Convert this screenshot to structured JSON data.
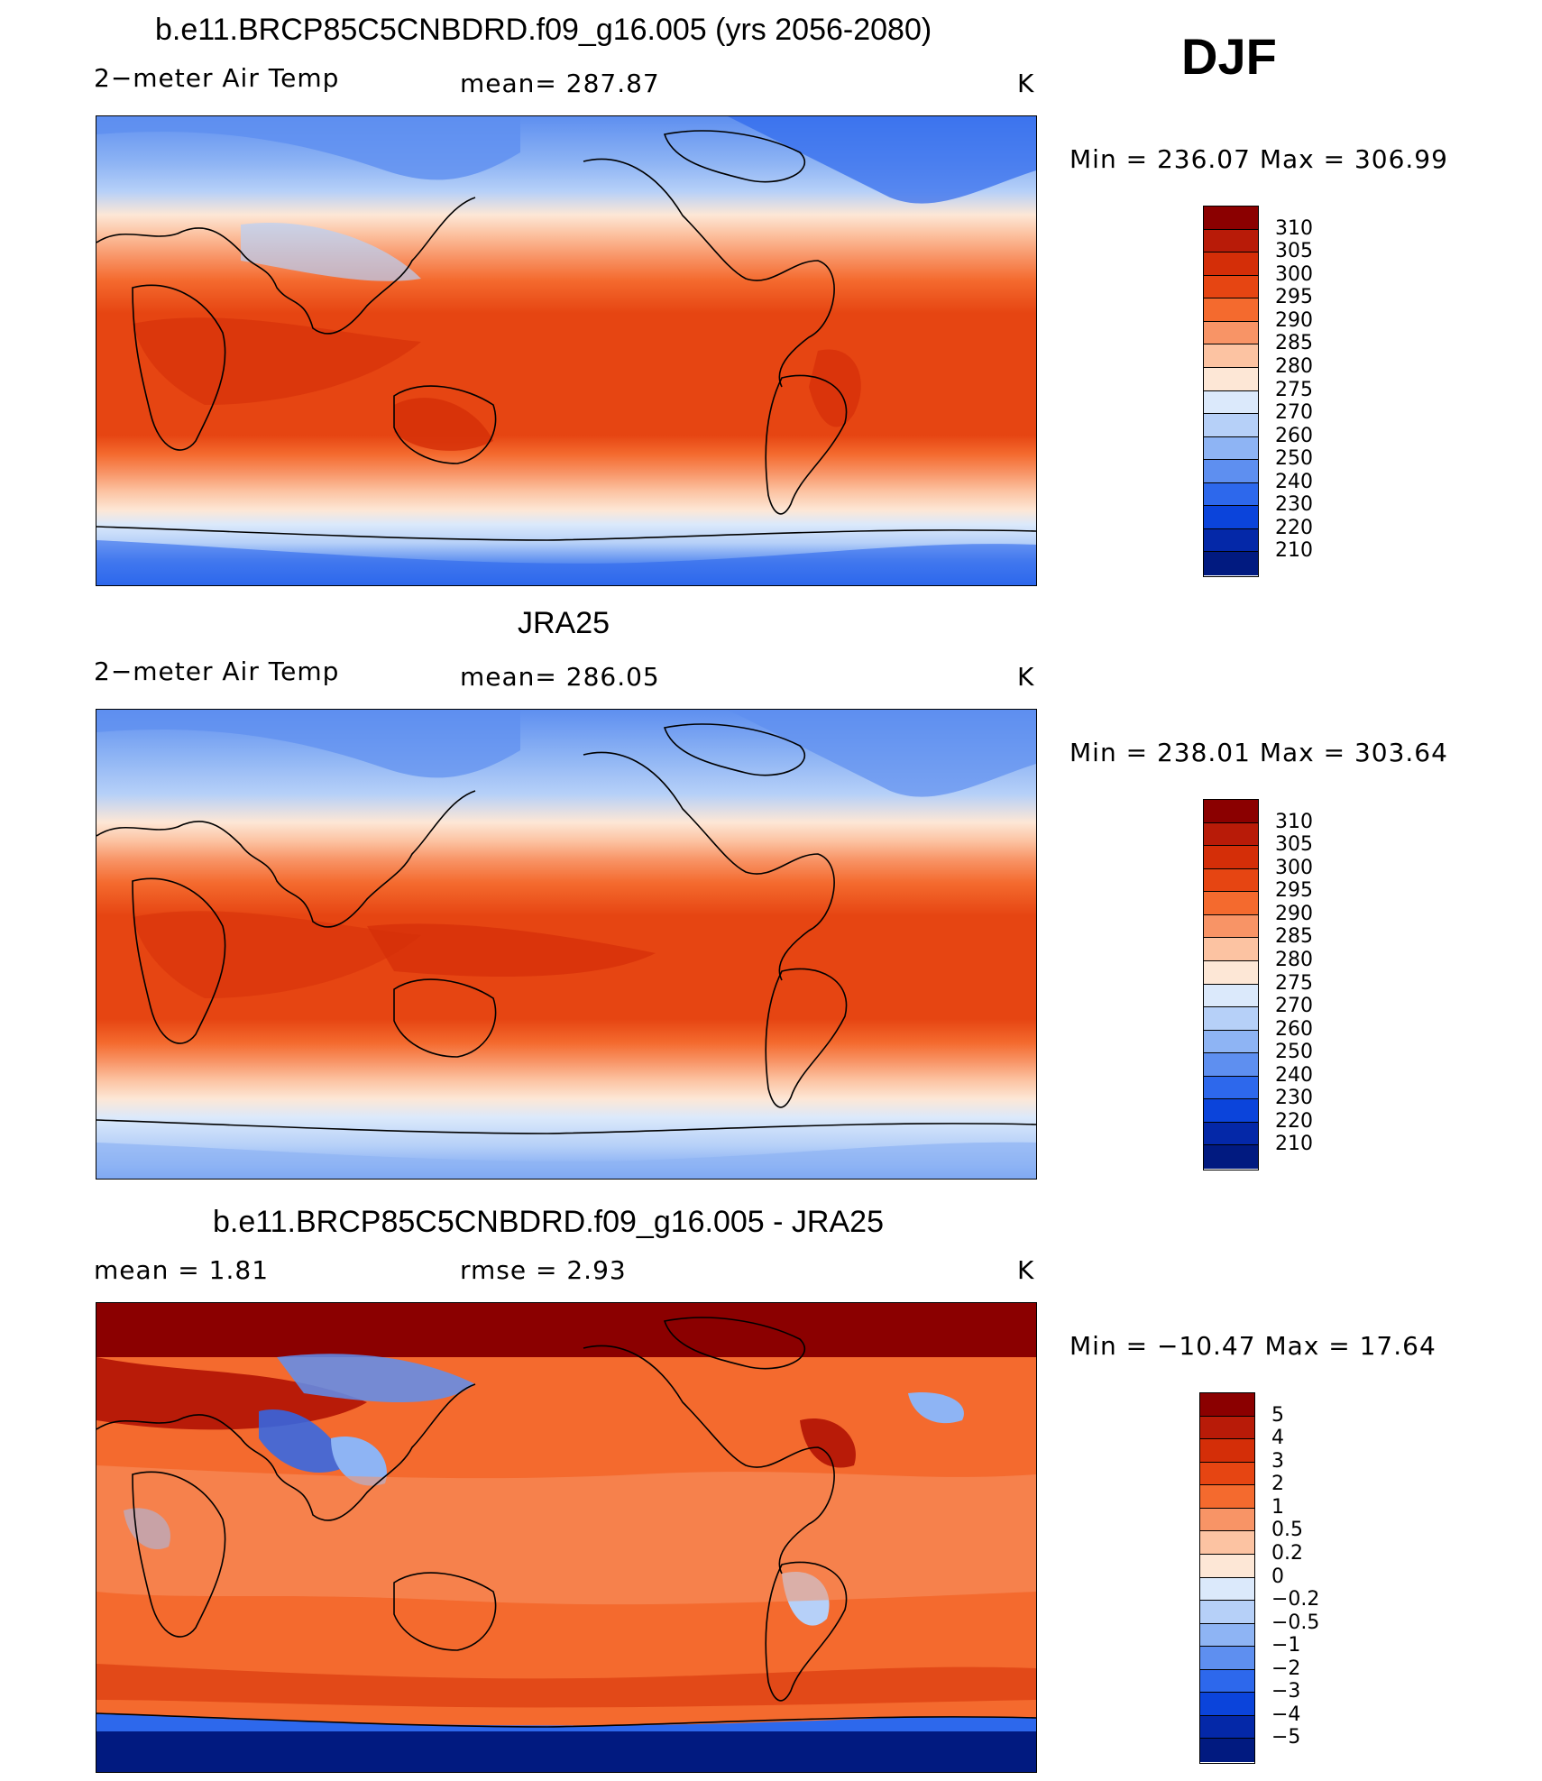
{
  "season": "DJF",
  "panels": [
    {
      "title": "b.e11.BRCP85C5CNBDRD.f09_g16.005 (yrs 2056-2080)",
      "left_label": "2−meter Air Temp",
      "center_label": "mean=  287.87",
      "right_label": "K",
      "minmax": "Min  =  236.07  Max  =  306.99",
      "palette": "abs",
      "bar_labels": [
        "310",
        "305",
        "300",
        "295",
        "290",
        "285",
        "280",
        "275",
        "270",
        "260",
        "250",
        "240",
        "230",
        "220",
        "210"
      ],
      "bar_colors": [
        "#8b0000",
        "#b81b08",
        "#d42e08",
        "#e64512",
        "#f46a2e",
        "#f89466",
        "#fcc3a2",
        "#fde7d6",
        "#dbe9fb",
        "#b6d0f8",
        "#8eb4f4",
        "#5e8ff0",
        "#2d68ec",
        "#0b44db",
        "#0428a8",
        "#011a80"
      ]
    },
    {
      "title": "JRA25",
      "left_label": "2−meter Air Temp",
      "center_label": "mean=  286.05",
      "right_label": "K",
      "minmax": "Min  =  238.01  Max  =  303.64",
      "palette": "abs",
      "bar_labels": [
        "310",
        "305",
        "300",
        "295",
        "290",
        "285",
        "280",
        "275",
        "270",
        "260",
        "250",
        "240",
        "230",
        "220",
        "210"
      ],
      "bar_colors": [
        "#8b0000",
        "#b81b08",
        "#d42e08",
        "#e64512",
        "#f46a2e",
        "#f89466",
        "#fcc3a2",
        "#fde7d6",
        "#dbe9fb",
        "#b6d0f8",
        "#8eb4f4",
        "#5e8ff0",
        "#2d68ec",
        "#0b44db",
        "#0428a8",
        "#011a80"
      ]
    },
    {
      "title": "b.e11.BRCP85C5CNBDRD.f09_g16.005 - JRA25",
      "left_label": "mean  =     1.81",
      "center_label": "rmse  =     2.93",
      "right_label": "K",
      "minmax": "Min  =  −10.47  Max  =    17.64",
      "palette": "diff",
      "bar_labels": [
        "5",
        "4",
        "3",
        "2",
        "1",
        "0.5",
        "0.2",
        "0",
        "−0.2",
        "−0.5",
        "−1",
        "−2",
        "−3",
        "−4",
        "−5"
      ],
      "bar_colors": [
        "#8b0000",
        "#b81b08",
        "#d42e08",
        "#e64512",
        "#f46a2e",
        "#f89466",
        "#fcc3a2",
        "#fde7d6",
        "#dbe9fb",
        "#b6d0f8",
        "#8eb4f4",
        "#5e8ff0",
        "#2d68ec",
        "#0b44db",
        "#0428a8",
        "#011a80"
      ]
    }
  ]
}
